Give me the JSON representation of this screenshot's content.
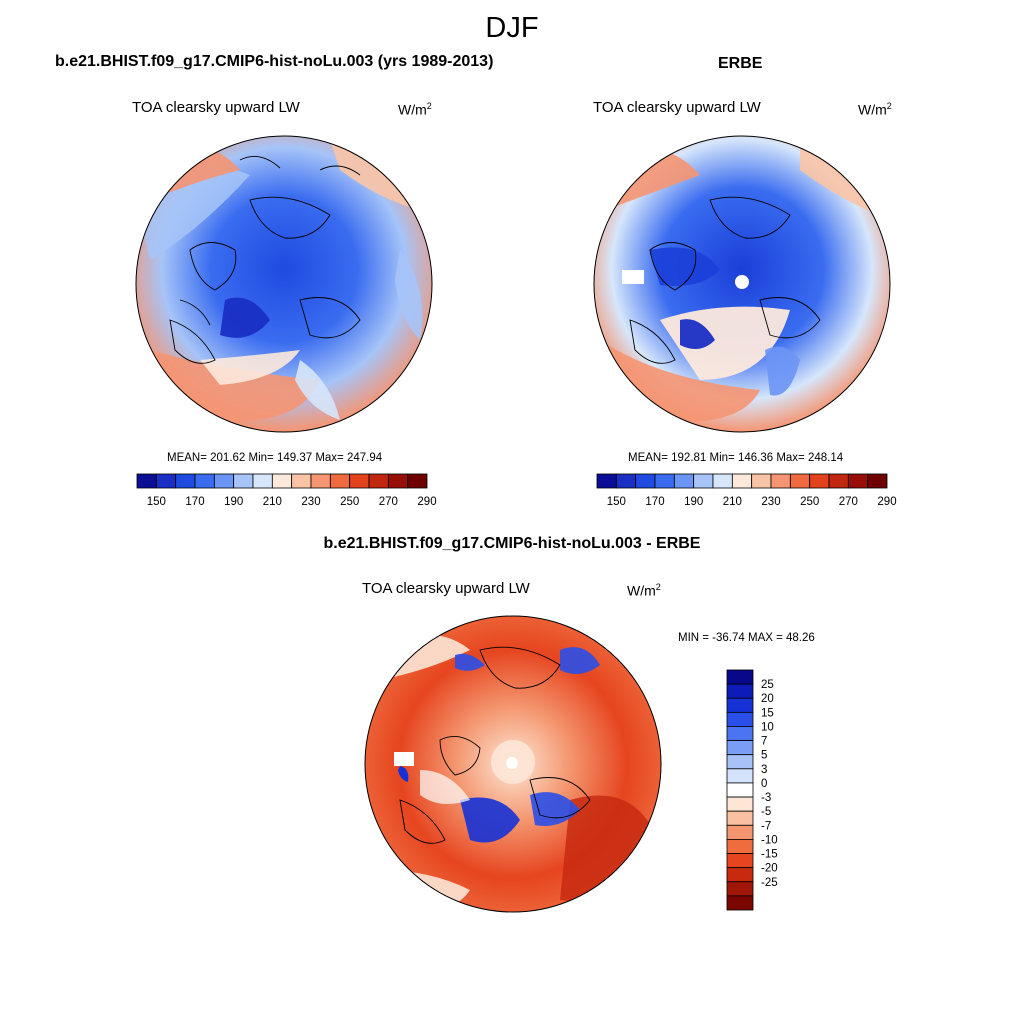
{
  "figure": {
    "title": "DJF",
    "model_title": "b.e21.BHIST.f09_g17.CMIP6-hist-noLu.003 (yrs 1989-2013)",
    "obs_title": "ERBE",
    "diff_title": "b.e21.BHIST.f09_g17.CMIP6-hist-noLu.003 - ERBE"
  },
  "panels": {
    "model": {
      "variable": "TOA clearsky upward LW",
      "units_base": "W/m",
      "units_exp": "2",
      "stats": "MEAN= 201.62  Min= 149.37  Max= 247.94"
    },
    "obs": {
      "variable": "TOA clearsky upward LW",
      "units_base": "W/m",
      "units_exp": "2",
      "stats": "MEAN= 192.81  Min= 146.36  Max= 248.14"
    },
    "diff": {
      "variable": "TOA clearsky upward LW",
      "units_base": "W/m",
      "units_exp": "2",
      "stats": "MIN = -36.74 MAX =  48.26"
    }
  },
  "colorbars": {
    "abs": {
      "colors": [
        "#0b0f96",
        "#1a2fc4",
        "#1f4be0",
        "#3a6cf0",
        "#6b95f5",
        "#a6c4f8",
        "#d6e6fb",
        "#fde9dc",
        "#f9c4a6",
        "#f59572",
        "#f06a3f",
        "#e2431c",
        "#c22710",
        "#9a0e08",
        "#6e0000"
      ],
      "labels": [
        "150",
        "170",
        "190",
        "210",
        "230",
        "250",
        "270",
        "290"
      ]
    },
    "diff": {
      "colors": [
        "#08088a",
        "#0d1cb8",
        "#1632d6",
        "#2a4fe8",
        "#4a74f2",
        "#7a9df6",
        "#a8c2f8",
        "#d4e2fb",
        "#ffffff",
        "#fde6d6",
        "#f9c1a2",
        "#f49770",
        "#ef6c3f",
        "#e6451f",
        "#c82a10",
        "#a01608",
        "#7a0600"
      ],
      "labels": [
        "25",
        "20",
        "15",
        "10",
        "7",
        "5",
        "3",
        "0",
        "-3",
        "-5",
        "-7",
        "-10",
        "-15",
        "-20",
        "-25"
      ]
    }
  }
}
